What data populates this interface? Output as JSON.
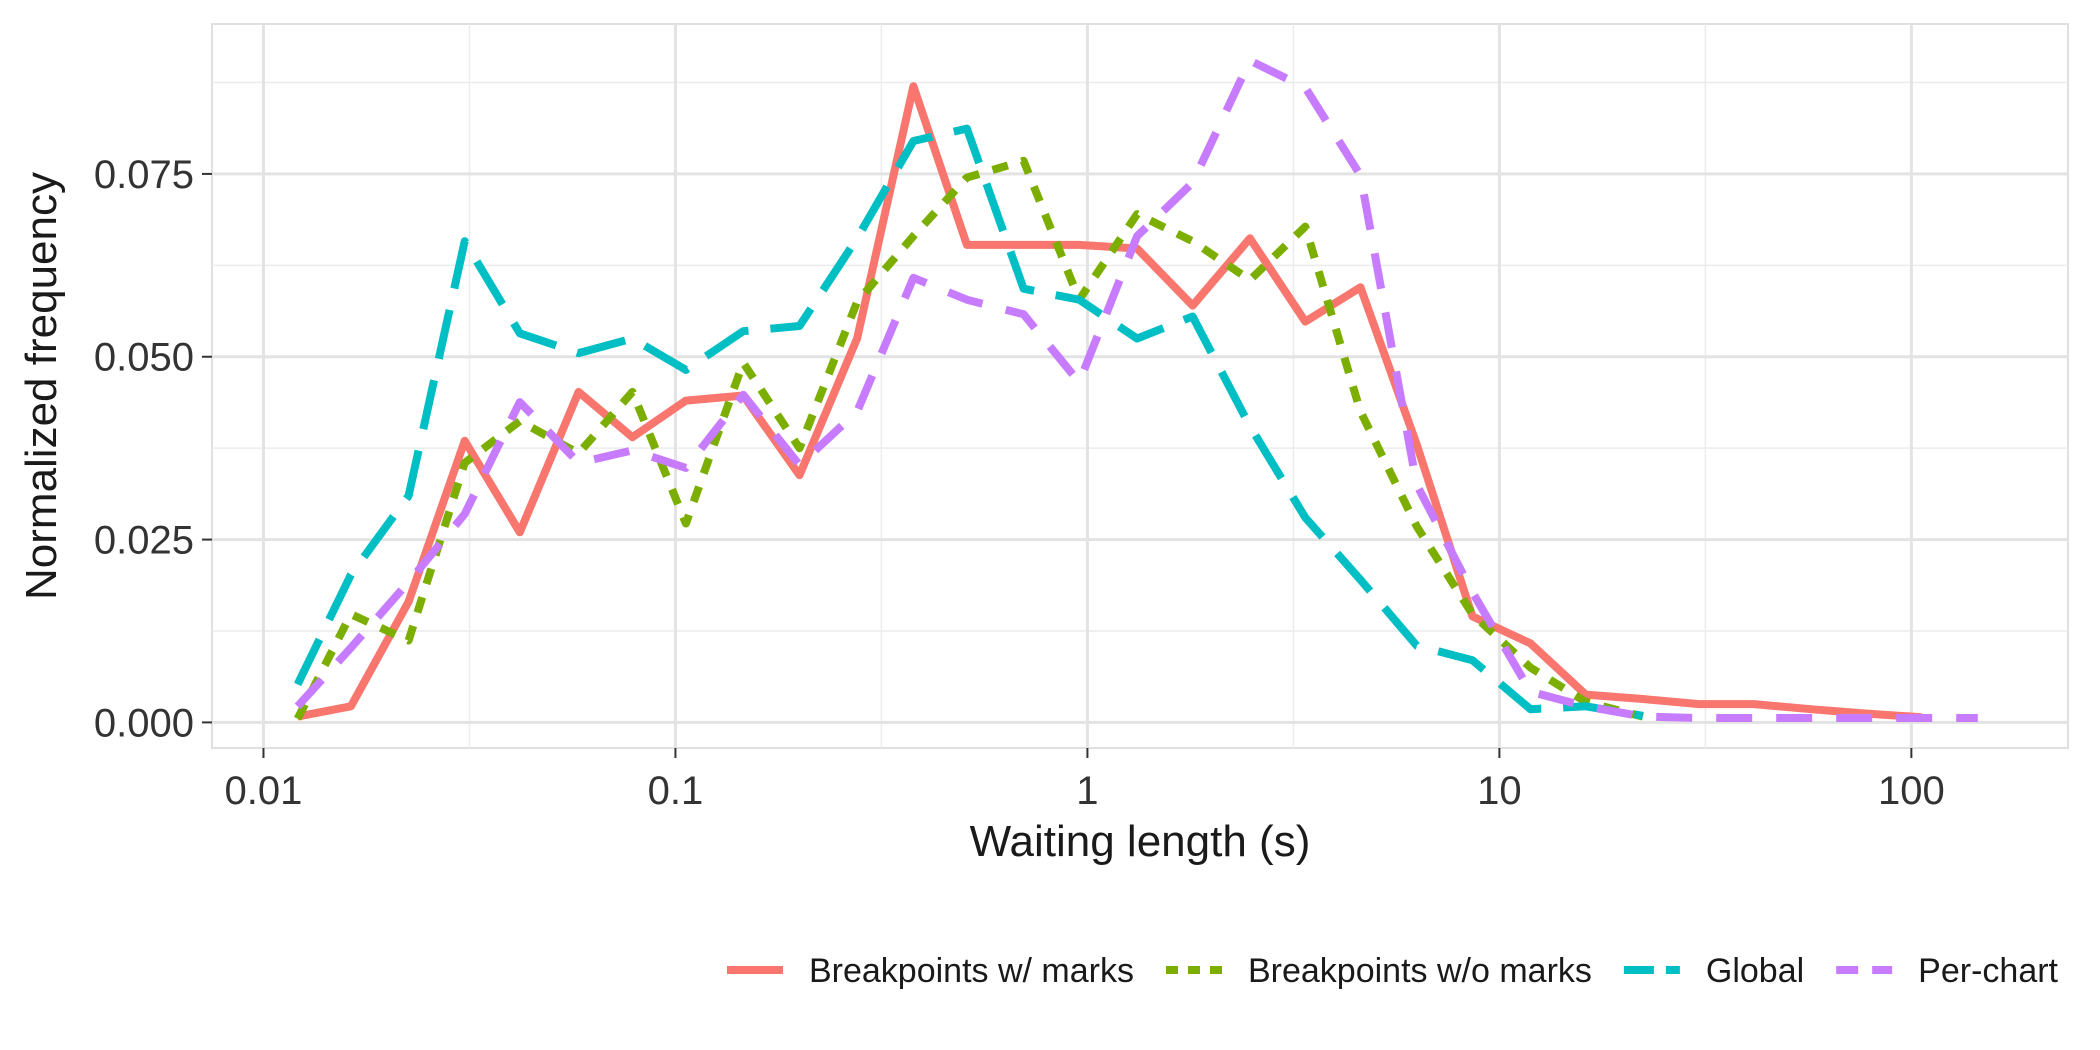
{
  "chart_data": {
    "type": "line",
    "title": "",
    "xlabel": "Waiting length (s)",
    "ylabel": "Normalized frequency",
    "x_scale": "log10",
    "xlim": [
      0.0075,
      240
    ],
    "ylim": [
      -0.0035,
      0.0955
    ],
    "x_ticks": [
      0.01,
      0.1,
      1,
      10,
      100
    ],
    "x_tick_labels": [
      "0.01",
      "0.1",
      "1",
      "10",
      "100"
    ],
    "y_ticks": [
      0.0,
      0.025,
      0.05,
      0.075
    ],
    "y_tick_labels": [
      "0.000",
      "0.025",
      "0.050",
      "0.075"
    ],
    "grid": true,
    "legend_position": "bottom-right",
    "series": [
      {
        "name": "Breakpoints w/ marks",
        "color": "#F8766D",
        "dash": "solid",
        "x": [
          0.0121,
          0.0163,
          0.0225,
          0.0308,
          0.0419,
          0.0582,
          0.0786,
          0.106,
          0.146,
          0.2,
          0.276,
          0.378,
          0.51,
          0.7,
          0.955,
          1.32,
          1.8,
          2.48,
          3.38,
          4.6,
          6.3,
          8.6,
          11.9,
          16.2,
          22.3,
          30.5,
          41.5,
          57,
          78,
          106
        ],
        "values": [
          0.0008,
          0.0022,
          0.0165,
          0.0385,
          0.026,
          0.0452,
          0.039,
          0.044,
          0.0447,
          0.0338,
          0.0525,
          0.087,
          0.0653,
          0.0653,
          0.0653,
          0.0648,
          0.057,
          0.0662,
          0.0548,
          0.0595,
          0.038,
          0.0145,
          0.0108,
          0.0038,
          0.0032,
          0.0025,
          0.0025,
          0.0018,
          0.0012,
          0.0007
        ]
      },
      {
        "name": "Breakpoints w/o marks",
        "color": "#7CAE00",
        "dash": "dotted",
        "x": [
          0.0121,
          0.0163,
          0.0225,
          0.0308,
          0.0419,
          0.0582,
          0.0786,
          0.106,
          0.146,
          0.2,
          0.276,
          0.378,
          0.51,
          0.7,
          0.955,
          1.32,
          1.8,
          2.48,
          3.38,
          4.6,
          6.3,
          8.6,
          11.9,
          16.2,
          22.3
        ],
        "values": [
          0.0005,
          0.0148,
          0.0112,
          0.0355,
          0.0412,
          0.0368,
          0.0452,
          0.0272,
          0.0492,
          0.0375,
          0.0575,
          0.0665,
          0.0745,
          0.0768,
          0.0578,
          0.0695,
          0.0658,
          0.0605,
          0.0678,
          0.0425,
          0.0268,
          0.0148,
          0.0075,
          0.0028,
          0.0008
        ]
      },
      {
        "name": "Global",
        "color": "#00BFC4",
        "dash": "longdash",
        "x": [
          0.0121,
          0.0163,
          0.0225,
          0.0308,
          0.0419,
          0.0582,
          0.0786,
          0.106,
          0.146,
          0.2,
          0.276,
          0.378,
          0.51,
          0.7,
          0.955,
          1.32,
          1.8,
          2.48,
          3.38,
          4.6,
          6.3,
          8.6,
          11.9,
          16.2,
          22.3
        ],
        "values": [
          0.0052,
          0.0202,
          0.031,
          0.0658,
          0.0532,
          0.0505,
          0.0525,
          0.0482,
          0.0535,
          0.0542,
          0.0662,
          0.0795,
          0.0812,
          0.0593,
          0.0578,
          0.0525,
          0.0555,
          0.0405,
          0.028,
          0.0195,
          0.0105,
          0.0085,
          0.0018,
          0.0022,
          0.0009
        ]
      },
      {
        "name": "Per-chart",
        "color": "#C77CFF",
        "dash": "dashed",
        "x": [
          0.0121,
          0.0163,
          0.0225,
          0.0308,
          0.0419,
          0.0582,
          0.0786,
          0.106,
          0.146,
          0.2,
          0.276,
          0.378,
          0.51,
          0.7,
          0.955,
          1.32,
          1.8,
          2.48,
          3.38,
          4.6,
          6.3,
          8.6,
          11.9,
          16.2,
          22.3,
          30.5,
          41.5,
          57,
          78,
          106,
          145
        ],
        "values": [
          0.0022,
          0.0102,
          0.0192,
          0.0285,
          0.0438,
          0.0355,
          0.0372,
          0.0348,
          0.0448,
          0.0352,
          0.0425,
          0.0608,
          0.0578,
          0.0558,
          0.0465,
          0.0665,
          0.0738,
          0.0905,
          0.0868,
          0.0748,
          0.0325,
          0.0178,
          0.0042,
          0.0022,
          0.0008,
          0.0006,
          0.0006,
          0.0006,
          0.0006,
          0.0006,
          0.0006
        ]
      }
    ]
  }
}
